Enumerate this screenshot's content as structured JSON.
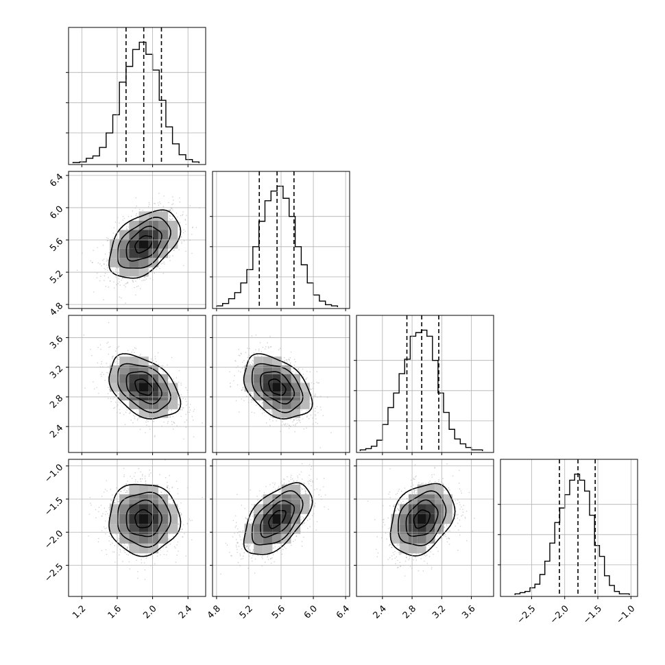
{
  "chart_data": {
    "type": "corner",
    "n_params": 4,
    "params": [
      {
        "range": [
          1.05,
          2.6
        ],
        "ticks": [
          1.2,
          1.6,
          2.0,
          2.4
        ],
        "tick_labels": [
          "1.2",
          "1.6",
          "2.0",
          "2.4"
        ],
        "quantiles": [
          1.7,
          1.9,
          2.1
        ]
      },
      {
        "range": [
          4.75,
          6.45
        ],
        "ticks": [
          4.8,
          5.2,
          5.6,
          6.0,
          6.4
        ],
        "tick_labels": [
          "4.8",
          "5.2",
          "5.6",
          "6.0",
          "6.4"
        ],
        "quantiles": [
          5.33,
          5.55,
          5.76
        ]
      },
      {
        "range": [
          2.05,
          3.9
        ],
        "ticks": [
          2.4,
          2.8,
          3.2,
          3.6
        ],
        "tick_labels": [
          "2.4",
          "2.8",
          "3.2",
          "3.6"
        ],
        "quantiles": [
          2.73,
          2.93,
          3.16
        ]
      },
      {
        "range": [
          -2.97,
          -0.9
        ],
        "ticks": [
          -1.0,
          -1.5,
          -2.0,
          -2.5
        ],
        "tick_labels": [
          "−1.0",
          "−1.5",
          "−2.0",
          "−2.5"
        ],
        "quantiles": [
          -2.08,
          -1.8,
          -1.54
        ]
      }
    ],
    "histograms": [
      {
        "bins": [
          1.1,
          1.175,
          1.25,
          1.325,
          1.4,
          1.475,
          1.55,
          1.625,
          1.7,
          1.775,
          1.85,
          1.925,
          2.0,
          2.075,
          2.15,
          2.225,
          2.3,
          2.375,
          2.45,
          2.525
        ],
        "counts": [
          0.005,
          0.01,
          0.04,
          0.06,
          0.13,
          0.25,
          0.4,
          0.67,
          0.8,
          0.94,
          1.0,
          0.9,
          0.77,
          0.52,
          0.3,
          0.16,
          0.07,
          0.03,
          0.01
        ]
      },
      {
        "bins": [
          4.8,
          4.875,
          4.95,
          5.025,
          5.1,
          5.175,
          5.25,
          5.325,
          5.4,
          5.475,
          5.55,
          5.625,
          5.7,
          5.775,
          5.85,
          5.925,
          6.0,
          6.075,
          6.15,
          6.225,
          6.3
        ],
        "counts": [
          0.01,
          0.03,
          0.07,
          0.12,
          0.2,
          0.31,
          0.5,
          0.71,
          0.88,
          0.96,
          1.0,
          0.9,
          0.75,
          0.5,
          0.35,
          0.2,
          0.1,
          0.05,
          0.02,
          0.01
        ]
      },
      {
        "bins": [
          2.1,
          2.175,
          2.25,
          2.325,
          2.4,
          2.475,
          2.55,
          2.625,
          2.7,
          2.775,
          2.85,
          2.925,
          3.0,
          3.075,
          3.15,
          3.225,
          3.3,
          3.375,
          3.45,
          3.525,
          3.6,
          3.675,
          3.75
        ],
        "counts": [
          0.01,
          0.02,
          0.04,
          0.09,
          0.22,
          0.36,
          0.48,
          0.64,
          0.76,
          0.95,
          0.98,
          1.0,
          0.95,
          0.75,
          0.48,
          0.32,
          0.18,
          0.1,
          0.06,
          0.03,
          0.01,
          0.01
        ]
      },
      {
        "bins": [
          -2.75,
          -2.675,
          -2.6,
          -2.525,
          -2.45,
          -2.375,
          -2.3,
          -2.225,
          -2.15,
          -2.075,
          -2.0,
          -1.925,
          -1.85,
          -1.775,
          -1.7,
          -1.625,
          -1.55,
          -1.475,
          -1.4,
          -1.325,
          -1.25,
          -1.175,
          -1.1,
          -1.025
        ],
        "counts": [
          0.01,
          0.02,
          0.03,
          0.06,
          0.09,
          0.17,
          0.28,
          0.43,
          0.6,
          0.72,
          0.83,
          0.95,
          1.0,
          0.95,
          0.86,
          0.66,
          0.41,
          0.32,
          0.16,
          0.08,
          0.03,
          0.01,
          0.01
        ]
      }
    ],
    "pairs": [
      {
        "i": 1,
        "j": 0,
        "mean": [
          1.9,
          5.55
        ],
        "sd": [
          0.2,
          0.21
        ],
        "rho": 0.45
      },
      {
        "i": 2,
        "j": 0,
        "mean": [
          1.9,
          2.93
        ],
        "sd": [
          0.2,
          0.215
        ],
        "rho": -0.4
      },
      {
        "i": 2,
        "j": 1,
        "mean": [
          5.55,
          2.93
        ],
        "sd": [
          0.21,
          0.215
        ],
        "rho": -0.4
      },
      {
        "i": 3,
        "j": 0,
        "mean": [
          1.9,
          -1.8
        ],
        "sd": [
          0.2,
          0.27
        ],
        "rho": 0.0
      },
      {
        "i": 3,
        "j": 1,
        "mean": [
          5.55,
          -1.8
        ],
        "sd": [
          0.21,
          0.27
        ],
        "rho": 0.55
      },
      {
        "i": 3,
        "j": 2,
        "mean": [
          2.93,
          -1.8
        ],
        "sd": [
          0.215,
          0.27
        ],
        "rho": 0.3
      }
    ],
    "contour_levels_sigma": [
      0.5,
      1.0,
      1.5,
      2.0
    ],
    "grid": true,
    "colors": {
      "line": "#000000",
      "grid": "#b0b0b0",
      "points": "#9a9a9a",
      "frame": "#000000"
    }
  }
}
